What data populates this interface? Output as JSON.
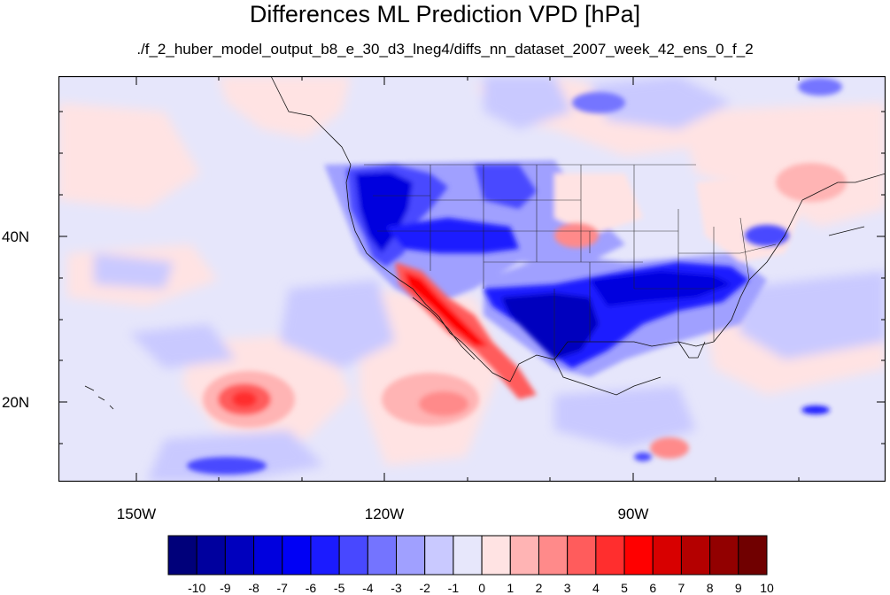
{
  "title": "Differences ML Prediction VPD [hPa]",
  "subtitle": "./f_2_huber_model_output_b8_e_30_d3_lneg4/diffs_nn_dataset_2007_week_42_ens_0_f_2",
  "map": {
    "latitude_labels": [
      "40N",
      "20N"
    ],
    "longitude_labels": [
      "150W",
      "120W",
      "90W"
    ],
    "lat_ticks": [
      40,
      20
    ],
    "lon_ticks": [
      -150,
      -120,
      -90
    ],
    "extent": {
      "lon_min": -159.4,
      "lon_max": -59.5,
      "lat_min": 10.8,
      "lat_max": 59.8
    }
  },
  "colorbar": {
    "labels": [
      "-10",
      "-9",
      "-8",
      "-7",
      "-6",
      "-5",
      "-4",
      "-3",
      "-2",
      "-1",
      "0",
      "1",
      "2",
      "3",
      "4",
      "5",
      "6",
      "7",
      "8",
      "9",
      "10"
    ],
    "colors": [
      "#00007a",
      "#00009e",
      "#0000be",
      "#0000de",
      "#0000f5",
      "#1b1bff",
      "#4848ff",
      "#7474ff",
      "#a0a0ff",
      "#c9c9ff",
      "#e7e7fb",
      "#ffe3e3",
      "#ffb4b4",
      "#ff8a8a",
      "#ff5c5c",
      "#ff2e2e",
      "#ff0000",
      "#d80000",
      "#b40000",
      "#920000",
      "#700000"
    ]
  },
  "colors": {
    "ocean_background": "#e6e6fb",
    "strong_negative": "#0000c8",
    "strong_positive": "#ff1e1e"
  }
}
